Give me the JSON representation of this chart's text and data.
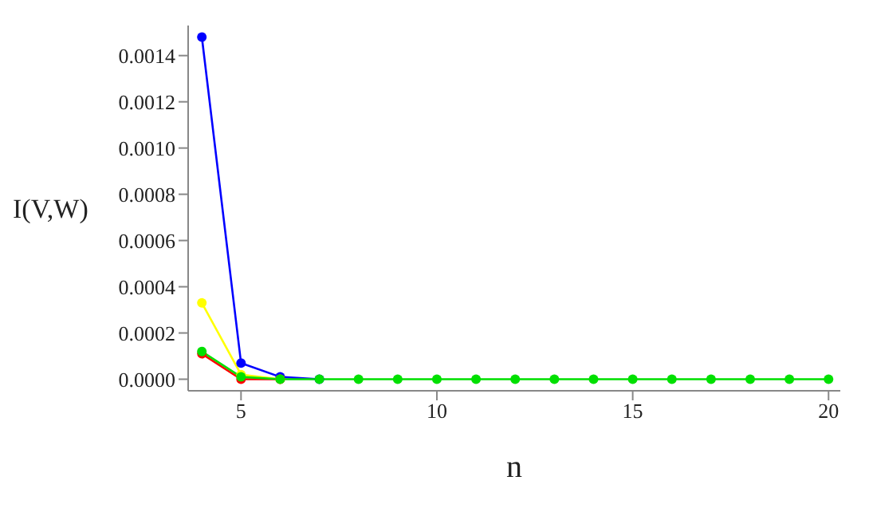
{
  "chart_data": {
    "type": "line",
    "xlabel": "n",
    "ylabel": "I(V,W)",
    "x": [
      4,
      5,
      6,
      7,
      8,
      9,
      10,
      11,
      12,
      13,
      14,
      15,
      16,
      17,
      18,
      19,
      20
    ],
    "series": [
      {
        "color": "#0000ff",
        "values": [
          0.00148,
          7e-05,
          1e-05,
          0,
          null,
          null,
          null,
          null,
          null,
          null,
          null,
          null,
          null,
          null,
          null,
          null,
          null
        ]
      },
      {
        "color": "#ffff00",
        "values": [
          0.00033,
          2e-05,
          0,
          null,
          null,
          null,
          null,
          null,
          null,
          null,
          null,
          null,
          null,
          null,
          null,
          null,
          null
        ]
      },
      {
        "color": "#ff0000",
        "values": [
          0.00011,
          0,
          0,
          null,
          null,
          null,
          null,
          null,
          null,
          null,
          null,
          null,
          null,
          null,
          null,
          null,
          null
        ]
      },
      {
        "color": "#00e000",
        "values": [
          0.00012,
          1e-05,
          0,
          0,
          0,
          0,
          0,
          0,
          0,
          0,
          0,
          0,
          0,
          0,
          0,
          0,
          0
        ]
      }
    ],
    "xlim": [
      3.65,
      20.3
    ],
    "xticks": [
      5,
      10,
      15,
      20
    ],
    "ylim": [
      -5e-05,
      0.00153
    ],
    "yticks": [
      {
        "value": 0,
        "label": "0.0000"
      },
      {
        "value": 0.0002,
        "label": "0.0002"
      },
      {
        "value": 0.0004,
        "label": "0.0004"
      },
      {
        "value": 0.0006,
        "label": "0.0006"
      },
      {
        "value": 0.0008,
        "label": "0.0008"
      },
      {
        "value": 0.001,
        "label": "0.0010"
      },
      {
        "value": 0.0012,
        "label": "0.0012"
      },
      {
        "value": 0.0014,
        "label": "0.0014"
      }
    ],
    "marker": "circle",
    "grid": false,
    "legend": false
  }
}
